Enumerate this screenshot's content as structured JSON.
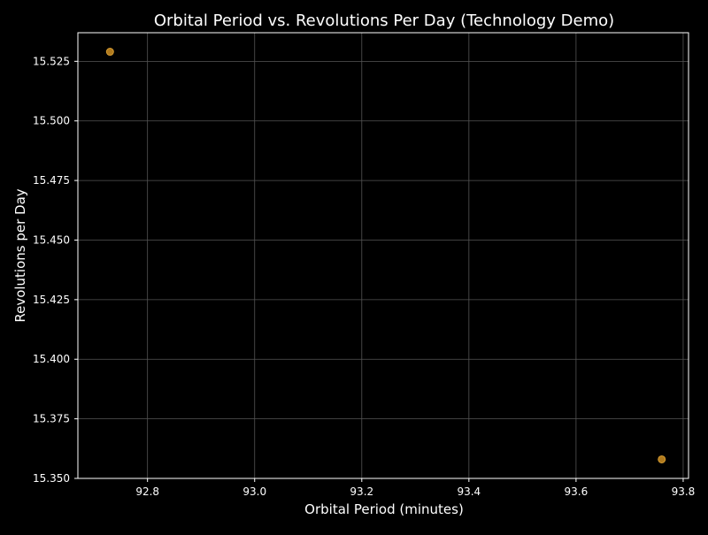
{
  "chart_data": {
    "type": "scatter",
    "title": "Orbital Period vs. Revolutions Per Day (Technology Demo)",
    "xlabel": "Orbital Period (minutes)",
    "ylabel": "Revolutions per Day",
    "xlim": [
      92.67,
      93.81
    ],
    "ylim": [
      15.35,
      15.537
    ],
    "xticks": [
      "92.8",
      "93.0",
      "93.2",
      "93.4",
      "93.6",
      "93.8"
    ],
    "yticks": [
      "15.350",
      "15.375",
      "15.400",
      "15.425",
      "15.450",
      "15.475",
      "15.500",
      "15.525"
    ],
    "grid": true,
    "points": [
      {
        "x": 92.73,
        "y": 15.529
      },
      {
        "x": 93.76,
        "y": 15.358
      }
    ],
    "colors": {
      "background": "#000000",
      "axes": "#ffffff",
      "grid": "#555555",
      "marker": "#b07a1e",
      "marker_edge": "#d49a30"
    }
  }
}
